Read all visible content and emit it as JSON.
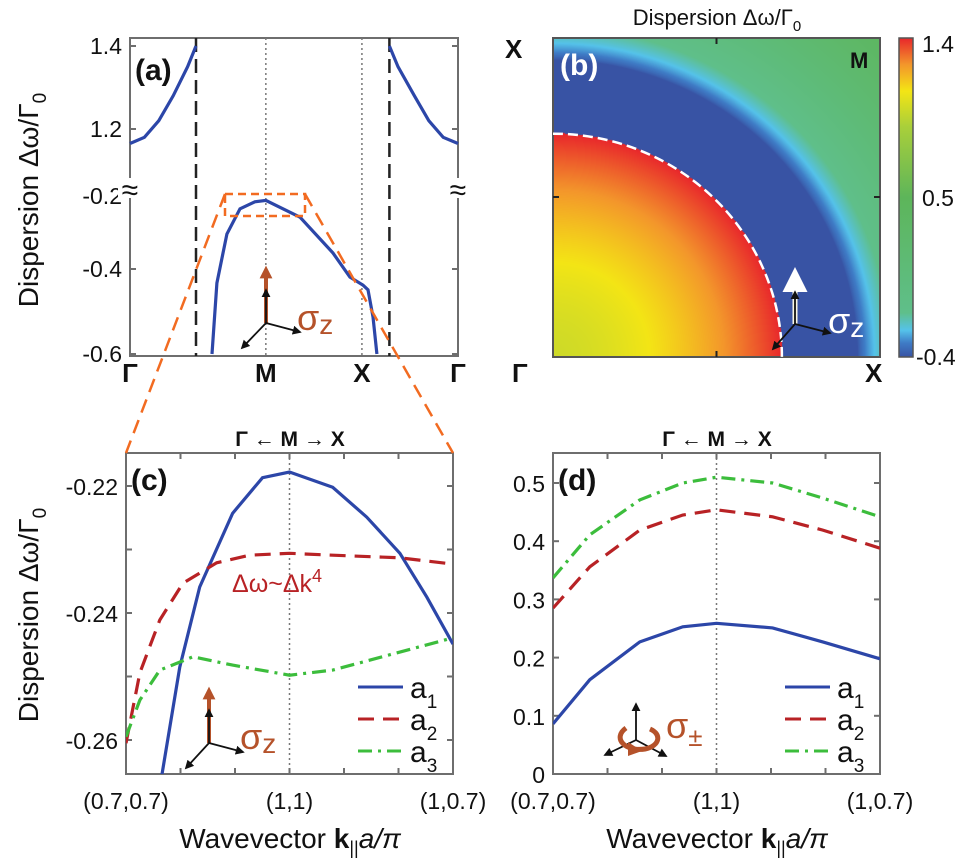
{
  "colors": {
    "a1": "#2c46a8",
    "a2": "#b82225",
    "a3": "#3cbd3c",
    "pol": "#b5522a",
    "zoom_box": "#f26b21",
    "axes": "#6e6e6e"
  },
  "chart_data": [
    {
      "panel": "(a)",
      "type": "line",
      "ylabel": "Dispersion Δω/Γ",
      "ylabel_sub": "0",
      "xticks": [
        {
          "label": "Γ",
          "x": 0
        },
        {
          "label": "M",
          "x": 1.414
        },
        {
          "label": "X",
          "x": 2.414
        },
        {
          "label": "Γ",
          "x": 3.414
        }
      ],
      "yticks": [
        "1.4",
        "1.2",
        "-0.2",
        "-0.4",
        "-0.6"
      ],
      "ytick_values": [
        1.4,
        1.2,
        -0.2,
        -0.4,
        -0.6
      ],
      "broken_axis": true,
      "break_symbol": "≈",
      "vertical_dashed_lines": [
        0.687,
        2.7
      ],
      "vertical_dotted_lines": [
        1.414,
        2.414
      ],
      "series": [
        {
          "segment": "upper-left",
          "x": [
            0,
            0.15,
            0.3,
            0.45,
            0.6,
            0.687
          ],
          "y": [
            1.165,
            1.18,
            1.22,
            1.28,
            1.35,
            1.4
          ]
        },
        {
          "segment": "upper-right",
          "x": [
            2.7,
            2.79,
            2.96,
            3.11,
            3.26,
            3.414
          ],
          "y": [
            1.4,
            1.35,
            1.28,
            1.22,
            1.18,
            1.165
          ]
        },
        {
          "segment": "lower",
          "x": [
            0.853,
            0.905,
            1.009,
            1.145,
            1.3,
            1.414,
            1.769,
            2.112,
            2.289,
            2.425,
            2.477,
            2.529,
            2.57
          ],
          "y": [
            -0.6,
            -0.433,
            -0.304,
            -0.235,
            -0.216,
            -0.212,
            -0.258,
            -0.356,
            -0.419,
            -0.438,
            -0.449,
            -0.513,
            -0.6
          ]
        }
      ],
      "annotation": {
        "symbol": "σ",
        "sub": "z"
      }
    },
    {
      "panel": "(b)",
      "type": "heatmap",
      "title": "Dispersion Δω/Γ",
      "title_sub": "0",
      "corner_labels": {
        "top_left": "X",
        "bottom_left": "Γ",
        "bottom_right": "X",
        "top_right_inside": "M"
      },
      "colorbar": {
        "ticks": [
          "1.4",
          "0.5",
          "-0.4"
        ],
        "range": [
          -0.4,
          1.4
        ],
        "stops": [
          [
            -0.4,
            "#3853a4"
          ],
          [
            -0.32,
            "#3f7cc6"
          ],
          [
            -0.25,
            "#55c2ea"
          ],
          [
            -0.15,
            "#5fbf8a"
          ],
          [
            0.5,
            "#5db55a"
          ],
          [
            0.9,
            "#a9cf3a"
          ],
          [
            1.1,
            "#f3e515"
          ],
          [
            1.25,
            "#f3962b"
          ],
          [
            1.4,
            "#e8262b"
          ]
        ]
      },
      "contour": {
        "style": "white-dashed",
        "shape": "quarter-circle",
        "radius_fraction_of_X": 0.7
      },
      "annotation": {
        "symbol": "σ",
        "sub": "z"
      }
    },
    {
      "panel": "(c)",
      "type": "line",
      "top_label": "Γ ← M → X",
      "ylabel": "Dispersion Δω/Γ",
      "ylabel_sub": "0",
      "xlabel": {
        "text": "Wavevector ",
        "bold": "k",
        "sub": "||",
        "italic": "a/π"
      },
      "xticks": [
        "(0.7,0.7)",
        "(1,1)",
        "(1,0.7)"
      ],
      "yticks": [
        "-0.22",
        "-0.24",
        "-0.26"
      ],
      "ylim": [
        -0.2654,
        -0.2148
      ],
      "annotation_text": {
        "main": "Δω~Δk",
        "sup": "4"
      },
      "legend": [
        "a",
        "a",
        "a"
      ],
      "legend_subs": [
        "1",
        "2",
        "3"
      ],
      "series": [
        {
          "name": "a1",
          "style": "solid",
          "x": [
            -0.78,
            -0.671,
            -0.549,
            -0.348,
            -0.165,
            0,
            0.264,
            0.472,
            0.675,
            0.84,
            1
          ],
          "y": [
            -0.2654,
            -0.2485,
            -0.2359,
            -0.2243,
            -0.2187,
            -0.2178,
            -0.2202,
            -0.2249,
            -0.2306,
            -0.2375,
            -0.2449
          ]
        },
        {
          "name": "a2",
          "style": "dashed",
          "x": [
            -1,
            -0.915,
            -0.793,
            -0.652,
            -0.445,
            -0.244,
            0,
            0.264,
            0.675,
            1
          ],
          "y": [
            -0.2605,
            -0.2494,
            -0.2411,
            -0.2353,
            -0.2321,
            -0.2309,
            -0.2306,
            -0.2309,
            -0.2313,
            -0.2323
          ]
        },
        {
          "name": "a3",
          "style": "dashdot",
          "x": [
            -1,
            -0.915,
            -0.793,
            -0.591,
            -0.348,
            0,
            0.264,
            0.567,
            1
          ],
          "y": [
            -0.2595,
            -0.2537,
            -0.249,
            -0.2469,
            -0.2482,
            -0.2498,
            -0.249,
            -0.2469,
            -0.2439
          ]
        }
      ],
      "annotation": {
        "symbol": "σ",
        "sub": "z"
      }
    },
    {
      "panel": "(d)",
      "type": "line",
      "top_label": "Γ ← M → X",
      "xlabel": {
        "text": "Wavevector ",
        "bold": "k",
        "sub": "||",
        "italic": "a/π"
      },
      "xticks": [
        "(0.7,0.7)",
        "(1,1)",
        "(1,0.7)"
      ],
      "yticks": [
        "0.5",
        "0.4",
        "0.3",
        "0.2",
        "0.1",
        "0"
      ],
      "ylim": [
        0,
        0.552
      ],
      "legend": [
        "a",
        "a",
        "a"
      ],
      "legend_subs": [
        "1",
        "2",
        "3"
      ],
      "series": [
        {
          "name": "a1",
          "style": "solid",
          "x": [
            -1,
            -0.775,
            -0.469,
            -0.206,
            0,
            0.343,
            0.65,
            1
          ],
          "y": [
            0.086,
            0.162,
            0.227,
            0.253,
            0.259,
            0.251,
            0.227,
            0.198
          ]
        },
        {
          "name": "a2",
          "style": "dashed",
          "x": [
            -1,
            -0.775,
            -0.469,
            -0.206,
            0,
            0.343,
            0.65,
            1
          ],
          "y": [
            0.285,
            0.356,
            0.419,
            0.445,
            0.454,
            0.442,
            0.419,
            0.388
          ]
        },
        {
          "name": "a3",
          "style": "dashdot",
          "x": [
            -1,
            -0.775,
            -0.469,
            -0.206,
            0,
            0.343,
            0.65,
            1
          ],
          "y": [
            0.337,
            0.411,
            0.471,
            0.5,
            0.51,
            0.5,
            0.474,
            0.442
          ]
        }
      ],
      "annotation": {
        "symbol": "σ",
        "sub": "±"
      }
    }
  ]
}
